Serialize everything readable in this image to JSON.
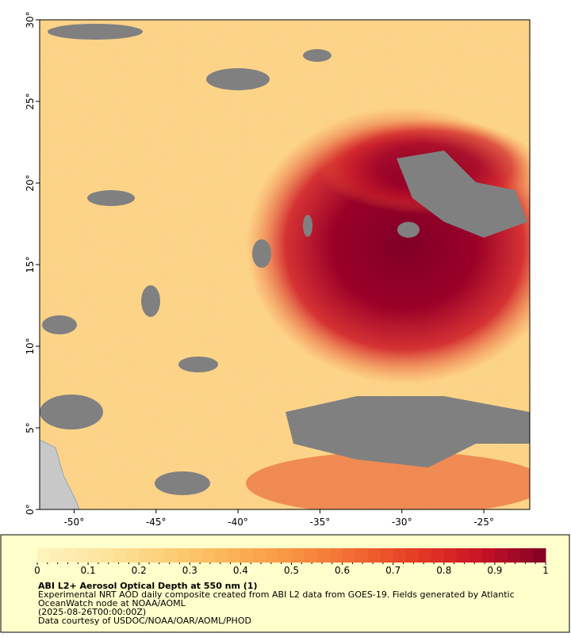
{
  "map": {
    "xlim": [
      -52.1,
      -22.2
    ],
    "ylim": [
      0,
      30
    ],
    "xticks": [
      {
        "value": -50,
        "label": "-50°"
      },
      {
        "value": -45,
        "label": "-45°"
      },
      {
        "value": -40,
        "label": "-40°"
      },
      {
        "value": -35,
        "label": "-35°"
      },
      {
        "value": -30,
        "label": "-30°"
      },
      {
        "value": -25,
        "label": "-25°"
      }
    ],
    "yticks": [
      {
        "value": 0,
        "label": "0°"
      },
      {
        "value": 5,
        "label": "5°"
      },
      {
        "value": 10,
        "label": "10°"
      },
      {
        "value": 15,
        "label": "15°"
      },
      {
        "value": 20,
        "label": "20°"
      },
      {
        "value": 25,
        "label": "25°"
      },
      {
        "value": 30,
        "label": "30°"
      }
    ]
  },
  "colorbar": {
    "lim": [
      0,
      1
    ],
    "ticks": [
      0,
      0.1,
      0.2,
      0.3,
      0.4,
      0.5,
      0.6,
      0.7,
      0.8,
      0.9,
      1
    ],
    "colors": [
      "#fef3c0",
      "#fde5a0",
      "#fcd078",
      "#fbb458",
      "#f89442",
      "#f26a32",
      "#e43a24",
      "#c81226",
      "#800026"
    ]
  },
  "caption": {
    "title": "ABI L2+ Aerosol Optical Depth at 550 nm (1)",
    "lines": [
      "Experimental NRT AOD daily composite created from ABI L2 data from GOES-19. Fields generated by Atlantic",
      "OceanWatch node at NOAA/AOML",
      "(2025-08-26T00:00:00Z)",
      "Data courtesy of USDOC/NOAA/OAR/AOML/PHOD"
    ]
  }
}
